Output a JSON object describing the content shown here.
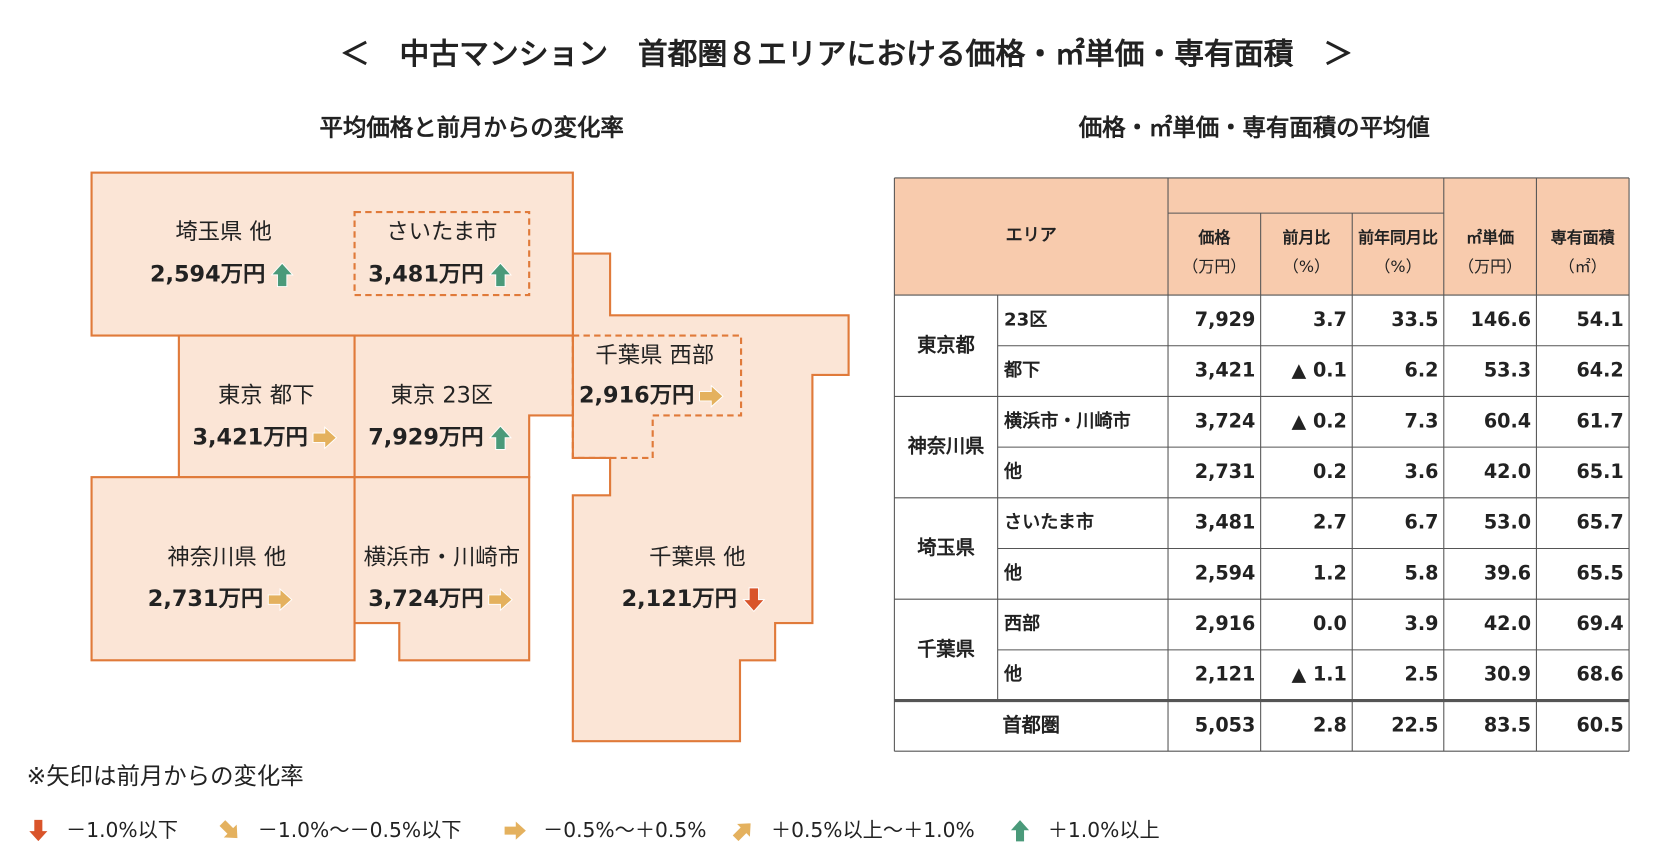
{
  "title": "＜　中古マンション　首都圏８エリアにおける価格・㎡単価・専有面積　＞",
  "map": {
    "title": "平均価格と前月からの変化率",
    "regions": [
      {
        "name": "埼玉県 他",
        "price": "2,594万円",
        "arrow": "up"
      },
      {
        "name": "さいたま市",
        "price": "3,481万円",
        "arrow": "up"
      },
      {
        "name": "東京 都下",
        "price": "3,421万円",
        "arrow": "right"
      },
      {
        "name": "東京 23区",
        "price": "7,929万円",
        "arrow": "up"
      },
      {
        "name": "千葉県 西部",
        "price": "2,916万円",
        "arrow": "right"
      },
      {
        "name": "神奈川県 他",
        "price": "2,731万円",
        "arrow": "right"
      },
      {
        "name": "横浜市・川崎市",
        "price": "3,724万円",
        "arrow": "right"
      },
      {
        "name": "千葉県 他",
        "price": "2,121万円",
        "arrow": "down"
      }
    ]
  },
  "table": {
    "title": "価格・㎡単価・専有面積の平均値",
    "header": {
      "area": "エリア",
      "columns": [
        {
          "name": "価格",
          "unit": "（万円）"
        },
        {
          "name": "前月比",
          "unit": "（%）"
        },
        {
          "name": "前年同月比",
          "unit": "（%）"
        },
        {
          "name": "㎡単価",
          "unit": "（万円）"
        },
        {
          "name": "専有面積",
          "unit": "（㎡）"
        }
      ]
    },
    "groups": [
      {
        "name": "東京都",
        "rows": [
          {
            "label": "23区",
            "cells": [
              "7,929",
              "3.7",
              "33.5",
              "146.6",
              "54.1"
            ]
          },
          {
            "label": "都下",
            "cells": [
              "3,421",
              "▲ 0.1",
              "6.2",
              "53.3",
              "64.2"
            ]
          }
        ]
      },
      {
        "name": "神奈川県",
        "rows": [
          {
            "label": "横浜市・川崎市",
            "cells": [
              "3,724",
              "▲ 0.2",
              "7.3",
              "60.4",
              "61.7"
            ]
          },
          {
            "label": "他",
            "cells": [
              "2,731",
              "0.2",
              "3.6",
              "42.0",
              "65.1"
            ]
          }
        ]
      },
      {
        "name": "埼玉県",
        "rows": [
          {
            "label": "さいたま市",
            "cells": [
              "3,481",
              "2.7",
              "6.7",
              "53.0",
              "65.7"
            ]
          },
          {
            "label": "他",
            "cells": [
              "2,594",
              "1.2",
              "5.8",
              "39.6",
              "65.5"
            ]
          }
        ]
      },
      {
        "name": "千葉県",
        "rows": [
          {
            "label": "西部",
            "cells": [
              "2,916",
              "0.0",
              "3.9",
              "42.0",
              "69.4"
            ]
          },
          {
            "label": "他",
            "cells": [
              "2,121",
              "▲ 1.1",
              "2.5",
              "30.9",
              "68.6"
            ]
          }
        ]
      }
    ],
    "total": {
      "label": "首都圏",
      "cells": [
        "5,053",
        "2.8",
        "22.5",
        "83.5",
        "60.5"
      ]
    }
  },
  "legend": {
    "note": "※矢印は前月からの変化率",
    "items": [
      {
        "label": "－1.0%以下",
        "arrow": "down"
      },
      {
        "label": "－1.0%～－0.5%以下",
        "arrow": "down-right"
      },
      {
        "label": "－0.5%～＋0.5%",
        "arrow": "right"
      },
      {
        "label": "＋0.5%以上～＋1.0%",
        "arrow": "up-right"
      },
      {
        "label": "＋1.0%以上",
        "arrow": "up"
      }
    ]
  }
}
